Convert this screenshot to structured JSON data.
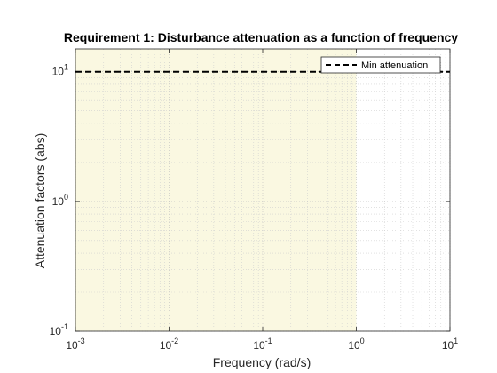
{
  "chart_data": {
    "type": "line",
    "title": "Requirement 1: Disturbance attenuation as a function of frequency",
    "xlabel": "Frequency (rad/s)",
    "ylabel": "Attenuation factors (abs)",
    "xscale": "log",
    "yscale": "log",
    "xlim": [
      0.001,
      10
    ],
    "ylim": [
      0.1,
      15
    ],
    "x_ticks": [
      {
        "value": 0.001,
        "base": "10",
        "exp": "-3"
      },
      {
        "value": 0.01,
        "base": "10",
        "exp": "-2"
      },
      {
        "value": 0.1,
        "base": "10",
        "exp": "-1"
      },
      {
        "value": 1,
        "base": "10",
        "exp": "0"
      },
      {
        "value": 10,
        "base": "10",
        "exp": "1"
      }
    ],
    "y_ticks": [
      {
        "value": 0.1,
        "base": "10",
        "exp": "-1"
      },
      {
        "value": 1,
        "base": "10",
        "exp": "0"
      },
      {
        "value": 10,
        "base": "10",
        "exp": "1"
      }
    ],
    "grid": true,
    "minor_grid": true,
    "legend_position": "top-right",
    "series": [
      {
        "name": "Min attenuation",
        "style": "dashed",
        "color": "#000000",
        "x": [
          0.001,
          10
        ],
        "y": [
          10,
          10
        ]
      }
    ],
    "shaded_region": {
      "x": [
        0.001,
        1
      ],
      "y": [
        0.1,
        15
      ],
      "color": "#faf8e1"
    }
  }
}
